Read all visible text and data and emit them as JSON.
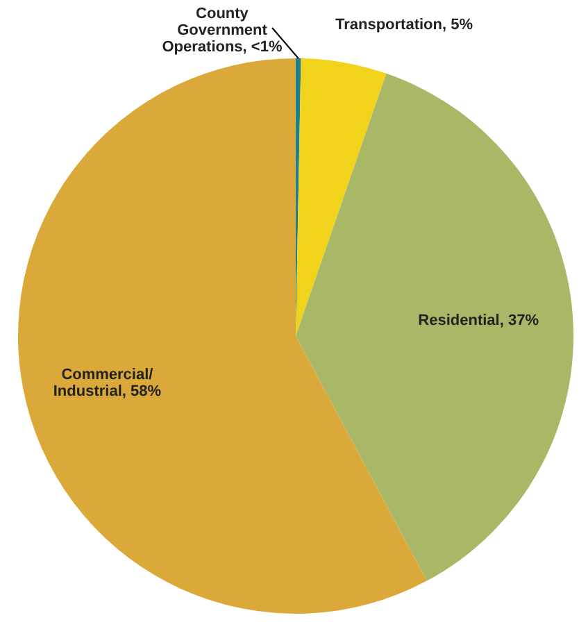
{
  "chart_data": {
    "type": "pie",
    "categories": [
      "County Government Operations",
      "Transportation",
      "Residential",
      "Commercial/Industrial"
    ],
    "values": [
      0.3,
      5,
      37,
      58
    ],
    "value_labels": [
      "<1%",
      "5%",
      "37%",
      "58%"
    ],
    "colors": [
      "#1f7f8c",
      "#f2d31b",
      "#a9b866",
      "#dba83a"
    ]
  }
}
